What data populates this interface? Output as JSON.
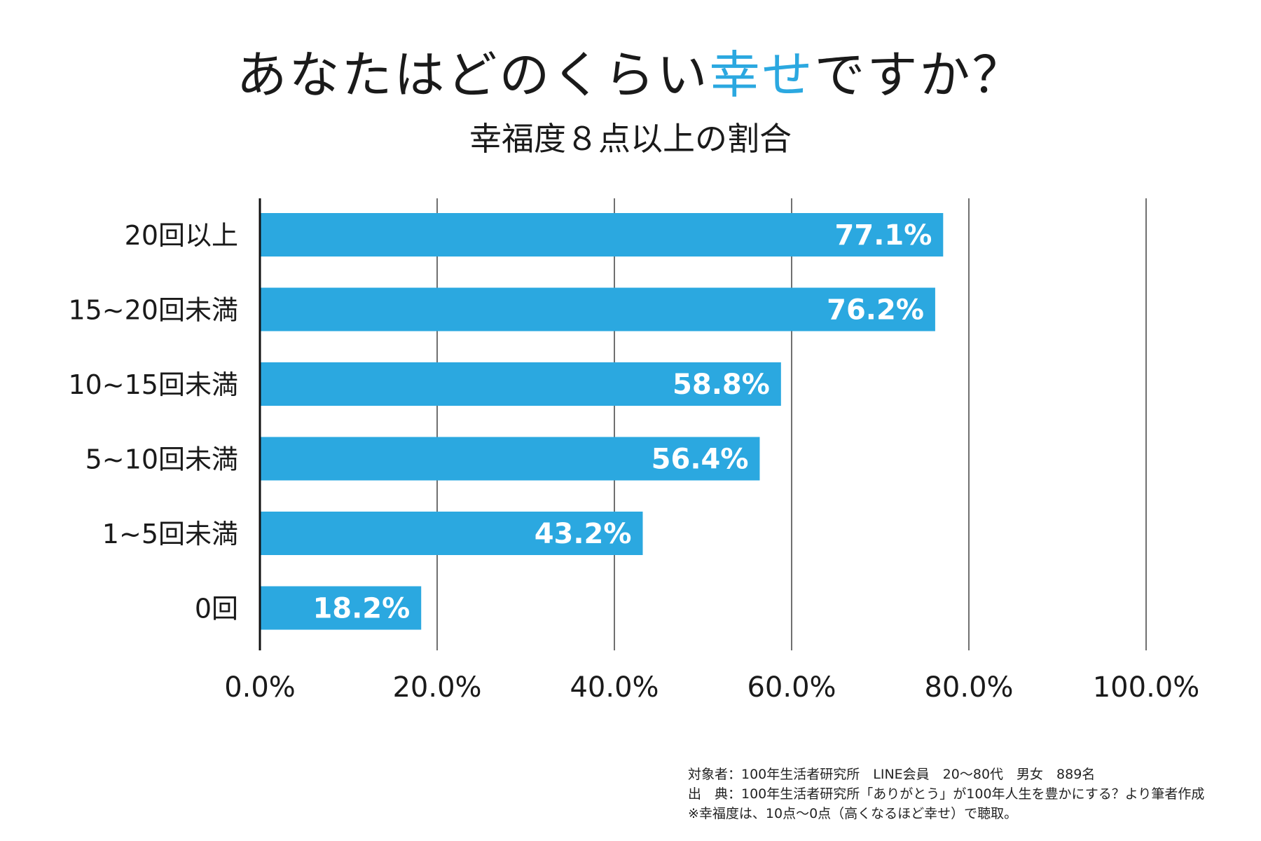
{
  "title_parts": {
    "before": "あなたはどのくらい",
    "accent": "幸せ",
    "after": "ですか？"
  },
  "subtitle": "幸福度８点以上の割合",
  "colors": {
    "bar": "#2ba8e0",
    "axis": "#111111",
    "text": "#1a1a1a",
    "accent": "#2ba8e0"
  },
  "chart_data": {
    "type": "bar",
    "orientation": "horizontal",
    "categories": [
      "20回以上",
      "15~20回未満",
      "10~15回未満",
      "5~10回未満",
      "1~5回未満",
      "0回"
    ],
    "values": [
      77.1,
      76.2,
      58.8,
      56.4,
      43.2,
      18.2
    ],
    "data_labels": [
      "77.1%",
      "76.2%",
      "58.8%",
      "56.4%",
      "43.2%",
      "18.2%"
    ],
    "x_ticks": [
      "0.0%",
      "20.0%",
      "40.0%",
      "60.0%",
      "80.0%",
      "100.0%"
    ],
    "xlim": [
      0,
      100
    ],
    "grid": "vertical lines",
    "legend": "none"
  },
  "notes": [
    "対象者：100年生活者研究所　LINE会員　20〜80代　男女　889名",
    "出　典：100年生活者研究所「ありがとう」が100年人生を豊かにする？より筆者作成",
    "※幸福度は、10点〜0点（高くなるほど幸せ）で聴取。"
  ]
}
